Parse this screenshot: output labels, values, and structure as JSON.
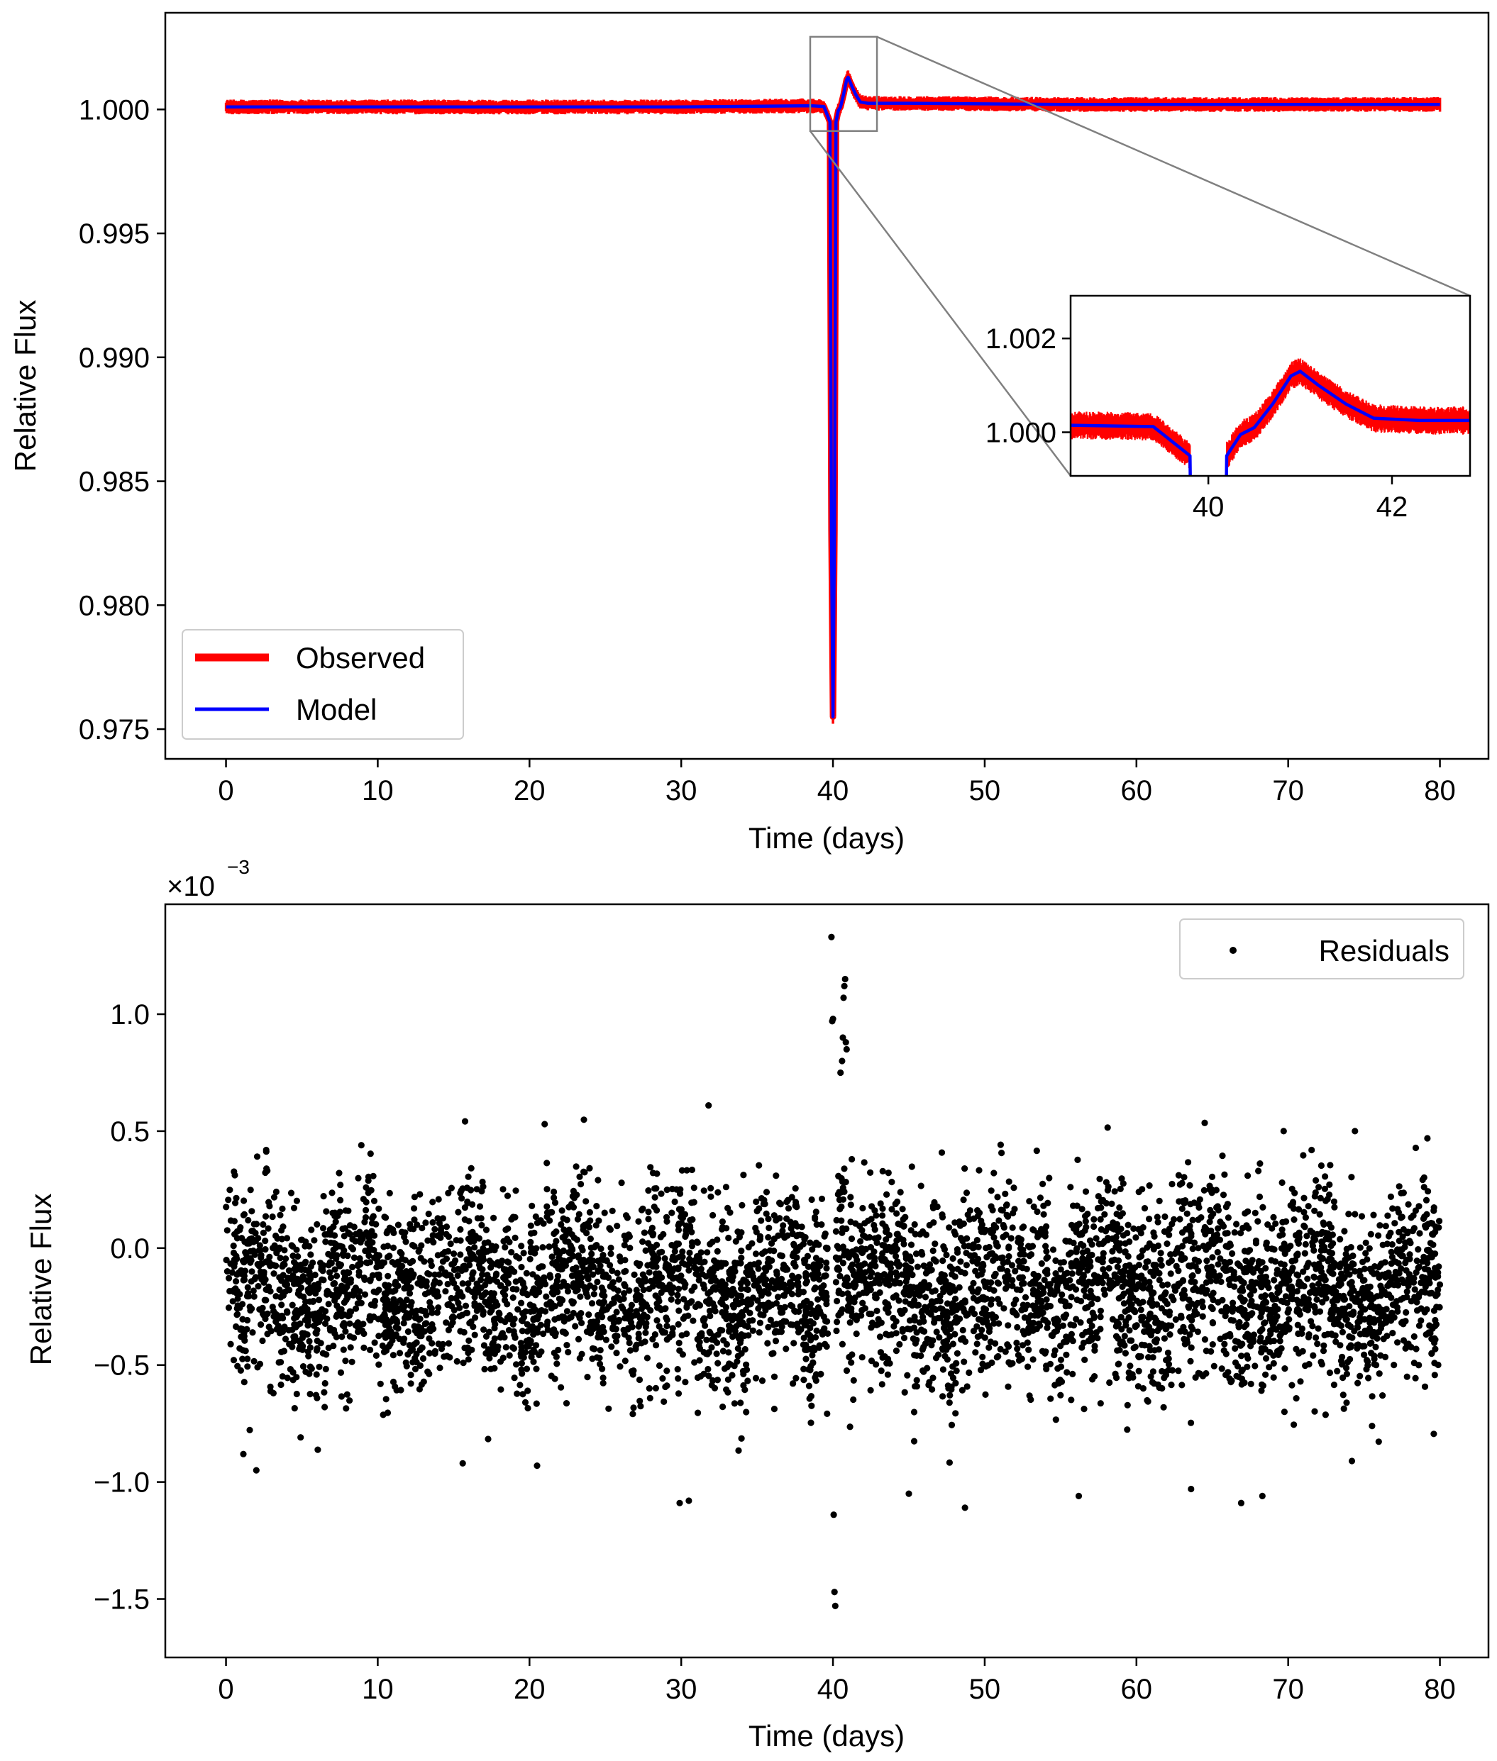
{
  "colors": {
    "observed": "#ff0000",
    "model": "#0000ff",
    "residuals": "#000000",
    "zoom_indicator": "#808080"
  },
  "chart_data": [
    {
      "type": "line",
      "xlabel": "Time (days)",
      "ylabel": "Relative Flux",
      "xlim": [
        -4,
        83.2
      ],
      "ylim": [
        0.9738,
        1.0039
      ],
      "xticks": [
        0,
        10,
        20,
        30,
        40,
        50,
        60,
        70,
        80
      ],
      "xtick_labels": [
        "0",
        "10",
        "20",
        "30",
        "40",
        "50",
        "60",
        "70",
        "80"
      ],
      "yticks": [
        0.975,
        0.98,
        0.985,
        0.99,
        0.995,
        1.0
      ],
      "ytick_labels": [
        "0.975",
        "0.980",
        "0.985",
        "0.990",
        "0.995",
        "1.000"
      ],
      "grid": false,
      "legend_position": "lower-left",
      "series": [
        {
          "name": "Observed",
          "color": "#ff0000",
          "style": "thick noisy band",
          "noise_halfwidth": 0.0003,
          "x": [
            0,
            10,
            20,
            30,
            38.5,
            39.4,
            39.8,
            39.9,
            40.0,
            40.1,
            40.2,
            40.35,
            40.5,
            40.7,
            40.9,
            41.0,
            41.2,
            41.5,
            41.8,
            42.3,
            45,
            55,
            65,
            80
          ],
          "y": [
            1.0001,
            1.0001,
            1.0001,
            1.0001,
            1.00015,
            1.00012,
            0.9995,
            0.983,
            0.9755,
            0.983,
            0.9995,
            0.99995,
            1.0001,
            1.0006,
            1.0012,
            1.0013,
            1.001,
            1.0006,
            1.0003,
            1.00025,
            1.00025,
            1.0002,
            1.0002,
            1.0002
          ]
        },
        {
          "name": "Model",
          "color": "#0000ff",
          "style": "line",
          "x": [
            0,
            10,
            20,
            30,
            38.5,
            39.4,
            39.8,
            39.9,
            40.0,
            40.1,
            40.2,
            40.35,
            40.5,
            40.7,
            40.9,
            41.0,
            41.2,
            41.5,
            41.8,
            42.3,
            45,
            55,
            65,
            80
          ],
          "y": [
            1.0001,
            1.0001,
            1.0001,
            1.0001,
            1.00015,
            1.00012,
            0.9995,
            0.983,
            0.9755,
            0.983,
            0.9995,
            0.99995,
            1.0001,
            1.0006,
            1.0012,
            1.0013,
            1.001,
            1.0006,
            1.0003,
            1.00025,
            1.00025,
            1.0002,
            1.0002,
            1.0002
          ]
        }
      ],
      "zoom_region": {
        "x": [
          38.5,
          42.9
        ],
        "y": [
          0.99913,
          1.00293
        ]
      },
      "inset": {
        "xlim": [
          38.5,
          42.85
        ],
        "ylim": [
          0.99907,
          1.00291
        ],
        "xticks": [
          40,
          42
        ],
        "xtick_labels": [
          "40",
          "42"
        ],
        "yticks": [
          1.0,
          1.002
        ],
        "ytick_labels": [
          "1.000",
          "1.002"
        ]
      }
    },
    {
      "type": "scatter",
      "xlabel": "Time (days)",
      "ylabel": "Relative Flux",
      "offset_text": "×10",
      "offset_exponent": "−3",
      "xlim": [
        -4,
        83.2
      ],
      "ylim": [
        -1.75,
        1.47
      ],
      "y_scale_factor": 0.001,
      "xticks": [
        0,
        10,
        20,
        30,
        40,
        50,
        60,
        70,
        80
      ],
      "xtick_labels": [
        "0",
        "10",
        "20",
        "30",
        "40",
        "50",
        "60",
        "70",
        "80"
      ],
      "yticks": [
        -1.5,
        -1.0,
        -0.5,
        0.0,
        0.5,
        1.0
      ],
      "ytick_labels": [
        "−1.5",
        "−1.0",
        "−0.5",
        "0.0",
        "0.5",
        "1.0"
      ],
      "grid": false,
      "legend_position": "upper-right",
      "series": [
        {
          "name": "Residuals",
          "color": "#000000",
          "marker": "dot",
          "baseline": -0.17,
          "scatter_std": 0.2,
          "n_points": 5200,
          "x_range": [
            0,
            80
          ],
          "outlier_points": [
            [
              39.9,
              1.33
            ],
            [
              40.0,
              0.98
            ],
            [
              39.95,
              0.97
            ],
            [
              40.8,
              1.15
            ],
            [
              40.75,
              1.12
            ],
            [
              40.7,
              1.07
            ],
            [
              40.65,
              0.9
            ],
            [
              40.85,
              0.88
            ],
            [
              40.9,
              0.85
            ],
            [
              40.6,
              0.8
            ],
            [
              40.5,
              0.75
            ],
            [
              31.8,
              0.61
            ],
            [
              21.0,
              0.53
            ],
            [
              69.7,
              0.5
            ],
            [
              74.4,
              0.5
            ],
            [
              40.05,
              -1.14
            ],
            [
              40.1,
              -1.47
            ],
            [
              40.15,
              -1.53
            ],
            [
              2.0,
              -0.95
            ],
            [
              29.9,
              -1.09
            ],
            [
              30.5,
              -1.08
            ],
            [
              48.7,
              -1.11
            ],
            [
              66.9,
              -1.09
            ],
            [
              68.3,
              -1.06
            ],
            [
              20.5,
              -0.93
            ],
            [
              56.2,
              -1.06
            ],
            [
              63.6,
              -1.03
            ],
            [
              45.0,
              -1.05
            ],
            [
              74.2,
              -0.91
            ],
            [
              15.6,
              -0.92
            ]
          ]
        }
      ]
    }
  ]
}
